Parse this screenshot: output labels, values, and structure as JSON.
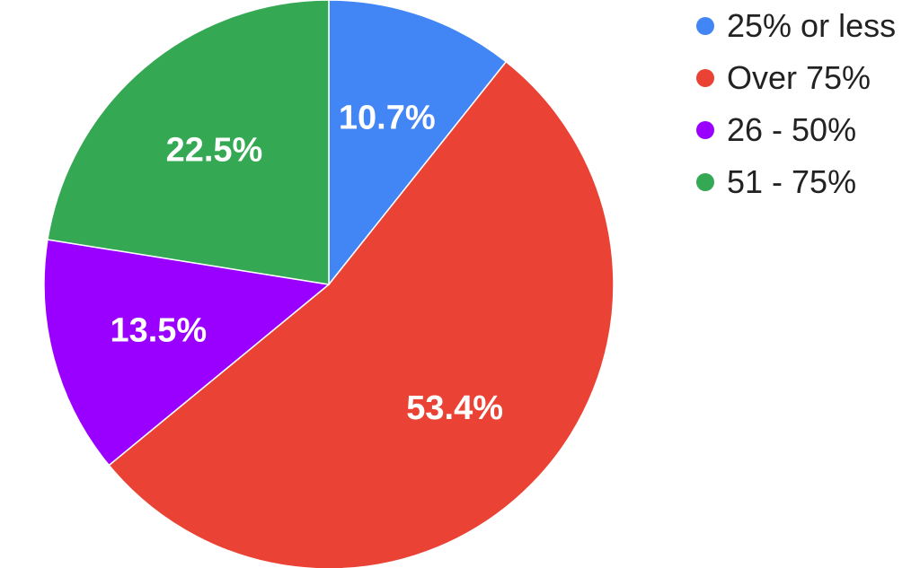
{
  "chart_data": {
    "type": "pie",
    "categories": [
      "25% or less",
      "Over 75%",
      "26 - 50%",
      "51 - 75%"
    ],
    "values": [
      10.7,
      53.4,
      13.5,
      22.5
    ],
    "labels": [
      "10.7%",
      "53.4%",
      "13.5%",
      "22.5%"
    ],
    "colors": [
      "#4285f4",
      "#ea4335",
      "#9900ff",
      "#34a853"
    ],
    "start_angle": "12 o'clock, clockwise",
    "legend_position": "right"
  }
}
